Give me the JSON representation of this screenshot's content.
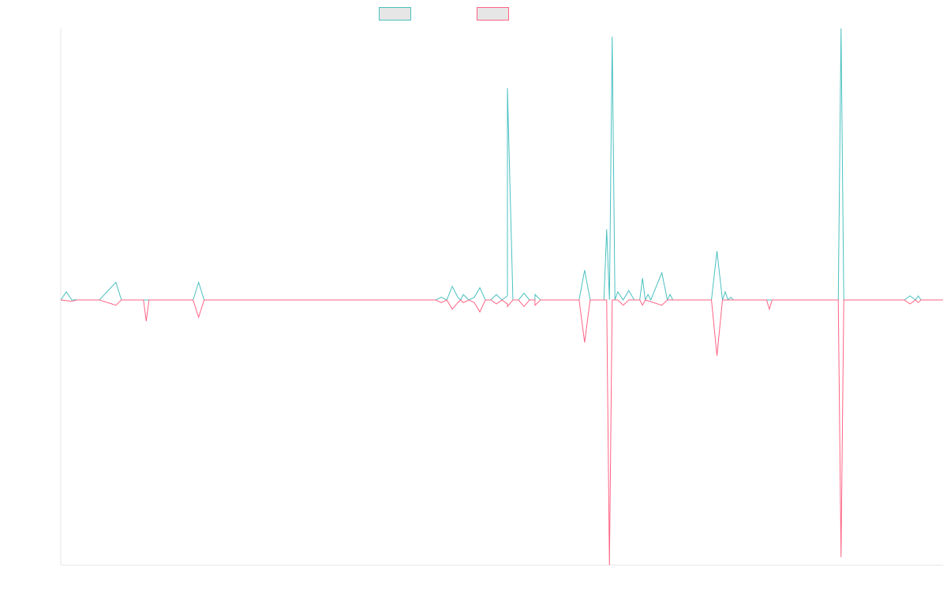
{
  "chart_data": {
    "type": "line",
    "title": "",
    "xlabel": "",
    "ylabel": "",
    "grid": false,
    "legend_position": "top-center",
    "legend_swatch_fill": "#e6e6e6",
    "ylim": [
      -100,
      100
    ],
    "x_count": 160,
    "series": [
      {
        "color": "#4bc0c0",
        "points": [
          [
            0,
            0
          ],
          [
            1,
            3
          ],
          [
            2,
            0
          ],
          [
            7,
            0
          ],
          [
            10,
            6.5
          ],
          [
            11,
            0
          ],
          [
            15,
            0
          ],
          [
            17,
            0
          ],
          [
            24,
            0
          ],
          [
            25,
            6.5
          ],
          [
            26,
            0
          ],
          [
            55,
            0
          ],
          [
            68,
            0
          ],
          [
            69,
            1
          ],
          [
            70,
            0
          ],
          [
            71,
            5
          ],
          [
            72,
            1
          ],
          [
            72.5,
            0
          ],
          [
            73,
            2
          ],
          [
            74,
            0
          ],
          [
            75,
            1
          ],
          [
            76,
            4.5
          ],
          [
            77,
            0
          ],
          [
            78,
            0
          ],
          [
            79,
            2
          ],
          [
            80,
            0
          ],
          [
            81,
            1.5
          ],
          [
            82,
            0
          ],
          [
            83,
            0
          ],
          [
            84,
            2.5
          ],
          [
            85,
            0
          ],
          [
            86,
            0
          ],
          [
            87,
            0
          ],
          [
            88,
            0
          ],
          [
            89,
            0
          ],
          [
            90,
            0
          ],
          [
            91,
            0
          ],
          [
            92,
            0
          ],
          [
            93,
            0
          ],
          [
            82,
            0
          ],
          [
            81,
            78
          ],
          [
            82,
            0
          ],
          [
            85,
            0
          ],
          [
            86,
            2
          ],
          [
            87,
            0
          ],
          [
            94,
            0
          ],
          [
            95,
            11
          ],
          [
            96,
            0
          ],
          [
            98,
            0
          ],
          [
            98.5,
            0
          ],
          [
            99,
            26
          ],
          [
            99.5,
            0
          ],
          [
            100,
            97
          ],
          [
            100.5,
            0
          ],
          [
            101,
            3
          ],
          [
            102,
            0
          ],
          [
            103,
            3.5
          ],
          [
            104,
            0
          ],
          [
            105,
            0
          ],
          [
            105.5,
            8
          ],
          [
            106,
            0
          ],
          [
            106.5,
            2
          ],
          [
            107,
            0
          ],
          [
            109,
            10
          ],
          [
            110,
            0
          ],
          [
            110.5,
            2
          ],
          [
            111,
            0
          ],
          [
            112,
            0
          ],
          [
            113,
            0
          ],
          [
            118,
            0
          ],
          [
            119,
            18
          ],
          [
            120,
            0
          ],
          [
            120.5,
            3
          ],
          [
            121,
            0
          ],
          [
            121.5,
            1
          ],
          [
            122,
            0
          ],
          [
            128,
            0
          ],
          [
            141,
            0
          ],
          [
            141.5,
            100
          ],
          [
            142,
            0
          ],
          [
            153,
            0
          ],
          [
            154,
            1.5
          ],
          [
            155,
            0
          ],
          [
            155.5,
            1.5
          ],
          [
            156,
            0
          ],
          [
            160,
            0
          ]
        ]
      },
      {
        "color": "#ff6384",
        "points": [
          [
            0,
            0
          ],
          [
            2,
            -0.5
          ],
          [
            3,
            0
          ],
          [
            7,
            0
          ],
          [
            10,
            -2
          ],
          [
            11,
            0
          ],
          [
            15,
            0
          ],
          [
            15.5,
            -8
          ],
          [
            16,
            0
          ],
          [
            24,
            0
          ],
          [
            25,
            -6.5
          ],
          [
            26,
            0
          ],
          [
            55,
            0
          ],
          [
            68,
            0
          ],
          [
            69,
            -1
          ],
          [
            70,
            0
          ],
          [
            71,
            -3.5
          ],
          [
            72,
            -1
          ],
          [
            72.5,
            0
          ],
          [
            73,
            -1
          ],
          [
            74,
            0
          ],
          [
            75,
            -1
          ],
          [
            76,
            -4.5
          ],
          [
            77,
            0
          ],
          [
            78,
            0
          ],
          [
            79,
            -1.5
          ],
          [
            80,
            0
          ],
          [
            81,
            -1.5
          ],
          [
            82,
            0
          ],
          [
            83,
            0
          ],
          [
            84,
            -2.5
          ],
          [
            85,
            0
          ],
          [
            86,
            0
          ],
          [
            87,
            0
          ],
          [
            88,
            0
          ],
          [
            89,
            0
          ],
          [
            90,
            0
          ],
          [
            91,
            0
          ],
          [
            92,
            0
          ],
          [
            93,
            0
          ],
          [
            82,
            0
          ],
          [
            81,
            -2.5
          ],
          [
            82,
            0
          ],
          [
            85,
            0
          ],
          [
            86,
            -2
          ],
          [
            87,
            0
          ],
          [
            94,
            0
          ],
          [
            95,
            -16
          ],
          [
            96,
            0
          ],
          [
            98,
            0
          ],
          [
            99,
            0
          ],
          [
            99.5,
            -100
          ],
          [
            100,
            0
          ],
          [
            101,
            0
          ],
          [
            102,
            -2
          ],
          [
            103,
            0
          ],
          [
            104,
            0
          ],
          [
            105,
            0
          ],
          [
            105.5,
            -2
          ],
          [
            106,
            0
          ],
          [
            109,
            -2
          ],
          [
            110,
            0
          ],
          [
            112,
            0
          ],
          [
            113,
            0
          ],
          [
            118,
            0
          ],
          [
            119,
            -21
          ],
          [
            120,
            0
          ],
          [
            121,
            0
          ],
          [
            128,
            0
          ],
          [
            128.5,
            -3.5
          ],
          [
            129,
            0
          ],
          [
            141,
            0
          ],
          [
            141.5,
            -97
          ],
          [
            142,
            0
          ],
          [
            153,
            0
          ],
          [
            154,
            -1.5
          ],
          [
            155,
            0
          ],
          [
            155.5,
            -1
          ],
          [
            156,
            0
          ],
          [
            160,
            0
          ]
        ]
      }
    ]
  }
}
